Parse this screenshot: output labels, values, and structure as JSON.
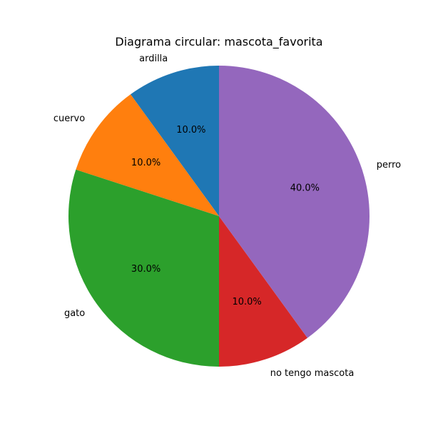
{
  "chart_data": {
    "type": "pie",
    "title": "Diagrama circular: mascota_favorita",
    "start_angle_deg": 90,
    "direction": "counterclockwise",
    "slices": [
      {
        "label": "ardilla",
        "value": 10.0,
        "pct_label": "10.0%",
        "color": "#1f77b4"
      },
      {
        "label": "cuervo",
        "value": 10.0,
        "pct_label": "10.0%",
        "color": "#ff7f0e"
      },
      {
        "label": "gato",
        "value": 30.0,
        "pct_label": "30.0%",
        "color": "#2ca02c"
      },
      {
        "label": "no tengo mascota",
        "value": 10.0,
        "pct_label": "10.0%",
        "color": "#d62728"
      },
      {
        "label": "perro",
        "value": 40.0,
        "pct_label": "40.0%",
        "color": "#9467bd"
      }
    ]
  }
}
